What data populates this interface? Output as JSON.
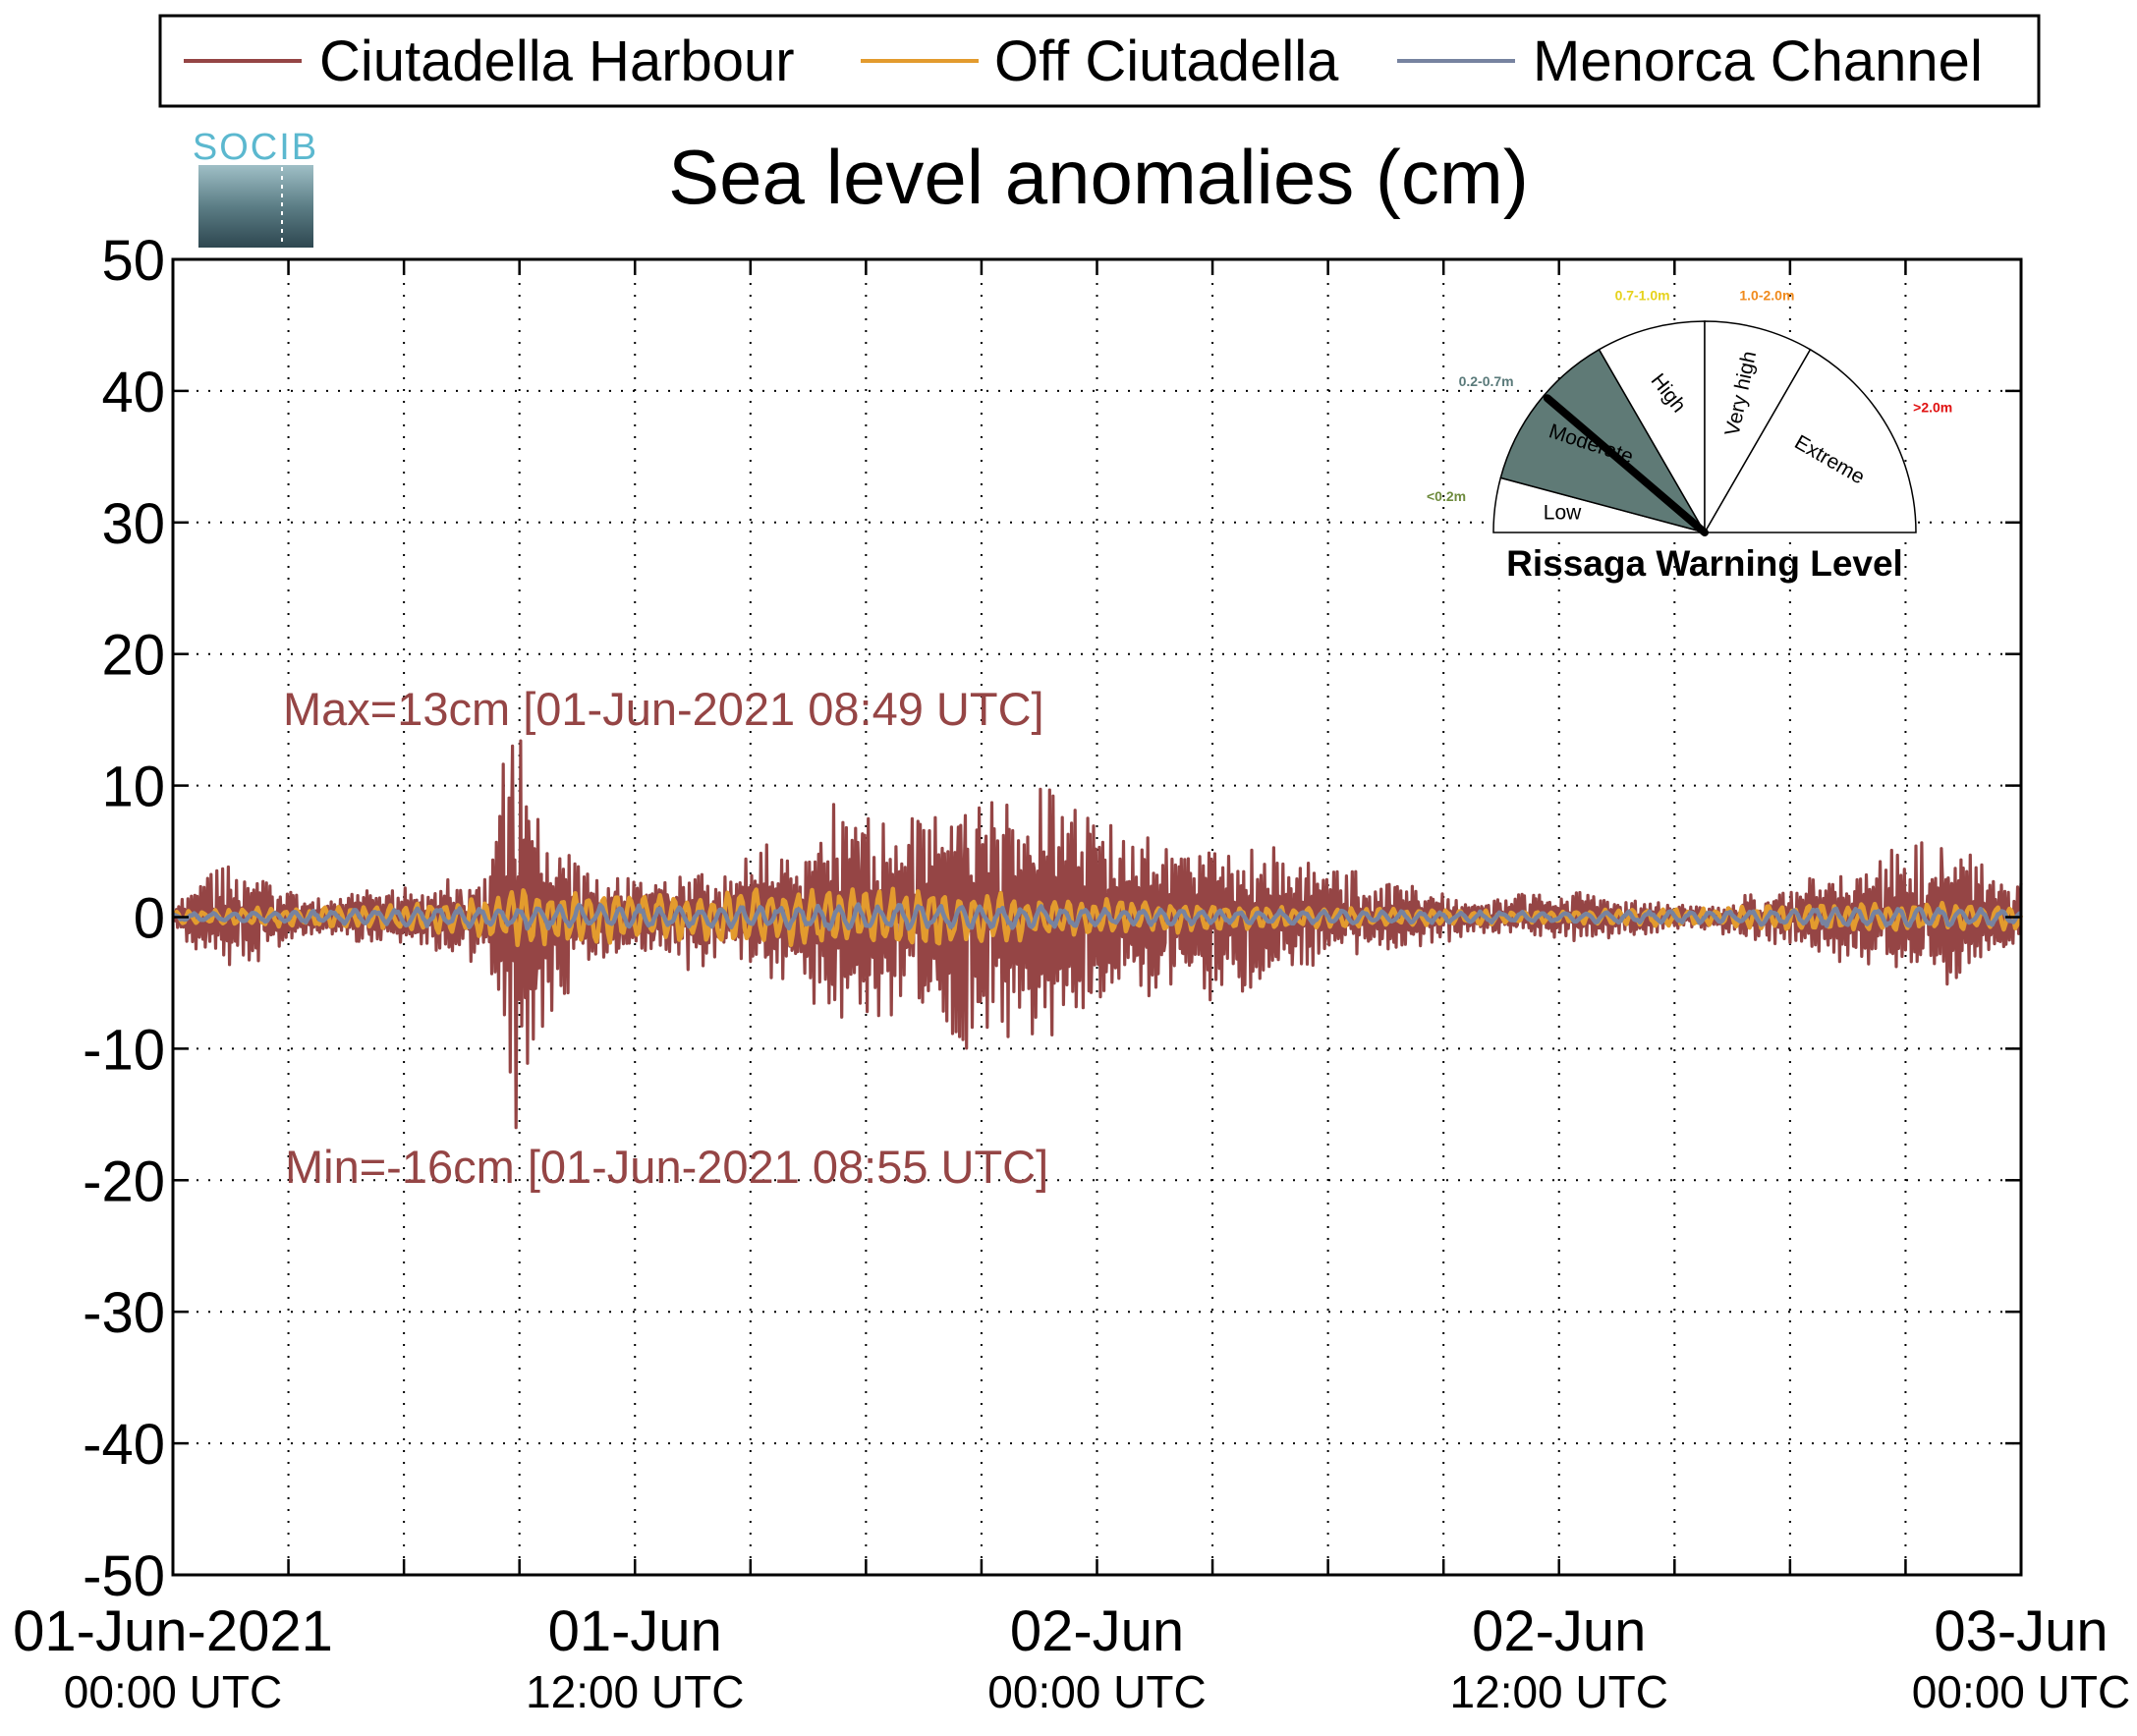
{
  "logo": {
    "text": "SOCIB"
  },
  "chart_data": {
    "type": "line",
    "title": "Sea level anomalies (cm)",
    "xlabel": "",
    "ylabel": "",
    "ylim": [
      -50,
      50
    ],
    "yticks": [
      50,
      40,
      30,
      20,
      10,
      0,
      -10,
      -20,
      -30,
      -40,
      -50
    ],
    "ytick_labels": [
      "50",
      "40",
      "30",
      "20",
      "10",
      "0",
      "-10",
      "-20",
      "-30",
      "-40",
      "-50"
    ],
    "x_unit": "hours since 01-Jun-2021 00:00 UTC",
    "xlim": [
      0,
      48
    ],
    "xticks_minor_hours": [
      3,
      6,
      9,
      15,
      18,
      21,
      27,
      30,
      33,
      39,
      42,
      45
    ],
    "xtick_labels": [
      {
        "hour": 0,
        "date": "01-Jun-2021",
        "time": "00:00 UTC"
      },
      {
        "hour": 12,
        "date": "01-Jun",
        "time": "12:00 UTC"
      },
      {
        "hour": 24,
        "date": "02-Jun",
        "time": "00:00 UTC"
      },
      {
        "hour": 36,
        "date": "02-Jun",
        "time": "12:00 UTC"
      },
      {
        "hour": 48,
        "date": "03-Jun",
        "time": "00:00 UTC"
      }
    ],
    "grid": true,
    "legend_position": "top",
    "series": [
      {
        "name": "Ciutadella Harbour",
        "color": "#954545",
        "style": "oscillating",
        "envelope": [
          [
            0,
            0.5
          ],
          [
            0.5,
            2.5
          ],
          [
            1.2,
            4.5
          ],
          [
            1.8,
            5.0
          ],
          [
            2.5,
            3.0
          ],
          [
            3.5,
            1.5
          ],
          [
            5,
            2.0
          ],
          [
            6.5,
            2.5
          ],
          [
            7.2,
            3.0
          ],
          [
            8.2,
            4.0
          ],
          [
            8.6,
            12.5
          ],
          [
            8.8,
            13.0
          ],
          [
            8.9,
            15.5
          ],
          [
            9.2,
            12.0
          ],
          [
            9.7,
            8.0
          ],
          [
            10.2,
            6.0
          ],
          [
            11,
            4.0
          ],
          [
            12,
            3.0
          ],
          [
            13,
            4.5
          ],
          [
            14.5,
            3.5
          ],
          [
            15.5,
            6.5
          ],
          [
            16.2,
            4.5
          ],
          [
            17,
            8.5
          ],
          [
            17.5,
            9.5
          ],
          [
            18.5,
            8.0
          ],
          [
            19.5,
            8.5
          ],
          [
            20.5,
            11.0
          ],
          [
            22,
            9.0
          ],
          [
            23,
            11.0
          ],
          [
            24,
            7.5
          ],
          [
            25.5,
            6.0
          ],
          [
            27,
            6.5
          ],
          [
            28.5,
            5.5
          ],
          [
            30,
            4.0
          ],
          [
            31.5,
            3.0
          ],
          [
            33,
            2.0
          ],
          [
            34,
            1.2
          ],
          [
            35,
            1.8
          ],
          [
            36.5,
            2.0
          ],
          [
            38,
            1.5
          ],
          [
            39.5,
            0.8
          ],
          [
            40.5,
            1.5
          ],
          [
            42,
            2.5
          ],
          [
            43.5,
            4.0
          ],
          [
            45,
            5.5
          ],
          [
            46,
            7.0
          ],
          [
            47,
            4.0
          ],
          [
            48,
            3.5
          ]
        ],
        "extremes": [
          {
            "hour": 8.82,
            "value": 13
          },
          {
            "hour": 8.92,
            "value": -16
          }
        ]
      },
      {
        "name": "Off Ciutadella",
        "color": "#E39B2E",
        "style": "oscillating",
        "envelope": [
          [
            0,
            0.5
          ],
          [
            3,
            0.8
          ],
          [
            6,
            1.0
          ],
          [
            8,
            1.5
          ],
          [
            9,
            2.5
          ],
          [
            11,
            2.0
          ],
          [
            13,
            2.0
          ],
          [
            17,
            2.5
          ],
          [
            19,
            2.5
          ],
          [
            21,
            2.0
          ],
          [
            24,
            1.5
          ],
          [
            28,
            1.0
          ],
          [
            33,
            0.6
          ],
          [
            36,
            0.5
          ],
          [
            40,
            0.8
          ],
          [
            44,
            1.2
          ],
          [
            48,
            1.0
          ]
        ]
      },
      {
        "name": "Menorca Channel",
        "color": "#7783A0",
        "style": "oscillating",
        "envelope": [
          [
            0,
            0.3
          ],
          [
            4,
            0.5
          ],
          [
            8,
            0.8
          ],
          [
            10,
            1.0
          ],
          [
            14,
            0.8
          ],
          [
            18,
            1.0
          ],
          [
            22,
            0.9
          ],
          [
            26,
            0.6
          ],
          [
            30,
            0.5
          ],
          [
            36,
            0.4
          ],
          [
            40,
            0.5
          ],
          [
            44,
            0.8
          ],
          [
            48,
            0.6
          ]
        ]
      }
    ],
    "annotations": [
      {
        "text": "Max=13cm [01-Jun-2021 08:49 UTC]",
        "color": "#954545"
      },
      {
        "text": "Min=-16cm [01-Jun-2021 08:55 UTC]",
        "color": "#954545"
      }
    ],
    "gauge": {
      "title": "Rissaga Warning Level",
      "needle_level": "Moderate",
      "segments": [
        {
          "label": "Low",
          "range": "<0.2m",
          "range_color": "#6E8B3D",
          "fill": "#ffffff"
        },
        {
          "label": "Moderate",
          "range": "0.2-0.7m",
          "range_color": "#5A7A7A",
          "fill": "#5F7A76"
        },
        {
          "label": "High",
          "range": "0.7-1.0m",
          "range_color": "#E6D21C",
          "fill": "#ffffff"
        },
        {
          "label": "Very high",
          "range": "1.0-2.0m",
          "range_color": "#F08A1C",
          "fill": "#ffffff"
        },
        {
          "label": "Extreme",
          "range": ">2.0m",
          "range_color": "#E01010",
          "fill": "#ffffff"
        }
      ]
    }
  }
}
